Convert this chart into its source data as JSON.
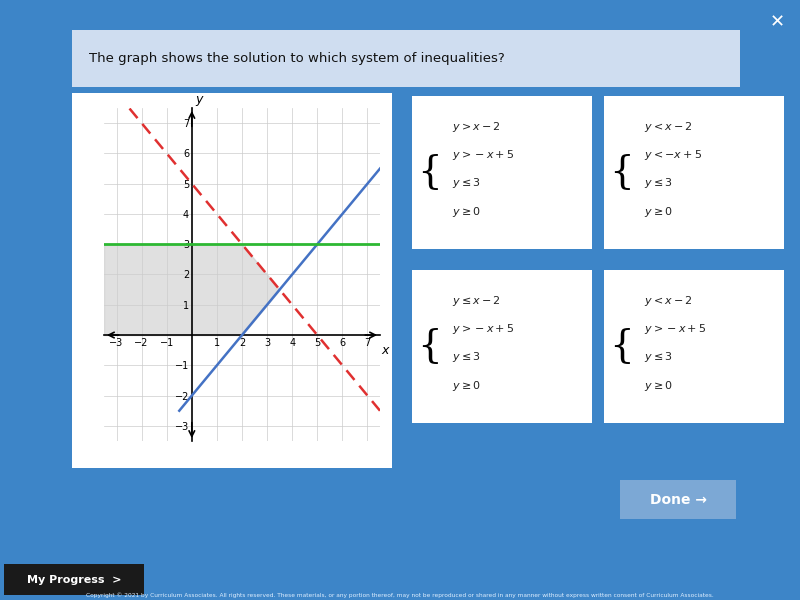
{
  "bg_color": "#3d85c8",
  "title_text": "The graph shows the solution to which system of inequalities?",
  "title_box_color": "#cfddf0",
  "title_text_color": "#111111",
  "graph_xlim": [
    -3.5,
    7.5
  ],
  "graph_ylim": [
    -3.5,
    7.5
  ],
  "blue_line_color": "#4472c4",
  "red_line_color": "#e03030",
  "green_line_color": "#2db832",
  "shade_color": "#c8c8c8",
  "shade_alpha": 0.55,
  "choices": [
    {
      "lines": [
        "y > x − 2",
        "y > −x + 5",
        "y ≤ 3",
        "y ≥ 0"
      ]
    },
    {
      "lines": [
        "y < x − 2",
        "y < −x + 5",
        "y ≤ 3",
        "y ≥ 0"
      ]
    },
    {
      "lines": [
        "y ≤ x − 2",
        "y > −x + 5",
        "y ≤ 3",
        "y ≥ 0"
      ]
    },
    {
      "lines": [
        "y < x − 2",
        "y > −x + 5",
        "y ≤ 3",
        "y ≥ 0"
      ]
    }
  ],
  "done_button_color": "#7ca8d5",
  "done_text": "Done →",
  "my_progress_text": "My Progress  >",
  "copyright_text": "Copyright © 2021 by Curriculum Associates. All rights reserved. These materials, or any portion thereof, may not be reproduced or shared in any manner without express written consent of Curriculum Associates.",
  "close_btn_color": "#ffffff",
  "white_card_color": "#ffffff",
  "card_edge_color": "#b8cce0"
}
